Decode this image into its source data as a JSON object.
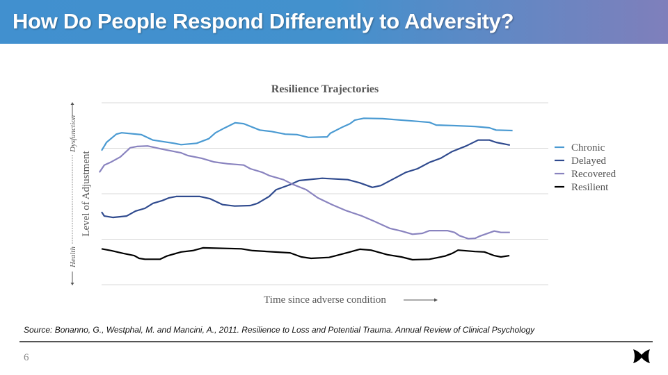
{
  "header": {
    "title": "How Do People Respond Differently to Adversity?"
  },
  "footer": {
    "source": "Source: Bonanno, G., Westphal, M. and Mancini, A., 2011. Resilience to Loss and Potential Trauma. Annual Review of Clinical Psychology",
    "page_number": "6",
    "logo_icon": "butterfly-x-logo-icon"
  },
  "chart_data": {
    "type": "line",
    "title": "Resilience Trajectories",
    "xlabel": "Time since adverse condition",
    "ylabel": "Level of Adjustment",
    "ylabel_low": "Health",
    "ylabel_high": "Dysfunction",
    "xlim": [
      0,
      100
    ],
    "ylim": [
      0,
      4
    ],
    "grid": true,
    "y_tick_labels": false,
    "legend": "right",
    "series": [
      {
        "name": "Chronic",
        "color": "#4a9ad2",
        "x": [
          0,
          1.1,
          3.3,
          4.5,
          8.9,
          11.5,
          16.2,
          17.8,
          21.3,
          24,
          25.5,
          27.4,
          29.9,
          31.8,
          35.4,
          38,
          41.1,
          43.8,
          46.3,
          50.5,
          51.2,
          54,
          55.6,
          56.7,
          58.7,
          62.9,
          69.6,
          73.4,
          74.9,
          78.5,
          83.6,
          86.8,
          88.3,
          92
        ],
        "y": [
          2.95,
          3.13,
          3.31,
          3.34,
          3.3,
          3.18,
          3.11,
          3.08,
          3.11,
          3.21,
          3.34,
          3.44,
          3.56,
          3.54,
          3.4,
          3.37,
          3.31,
          3.3,
          3.24,
          3.25,
          3.33,
          3.47,
          3.54,
          3.62,
          3.66,
          3.65,
          3.6,
          3.57,
          3.51,
          3.5,
          3.48,
          3.45,
          3.4,
          3.39
        ]
      },
      {
        "name": "Delayed",
        "color": "#2f4a8e",
        "x": [
          0,
          0.6,
          2.5,
          5.6,
          7.6,
          9.7,
          11.5,
          13.6,
          15.1,
          16.7,
          22,
          24.3,
          27.1,
          29.8,
          33.3,
          34.9,
          37.5,
          39.1,
          42.2,
          44.2,
          49.4,
          55.1,
          57.8,
          60.6,
          62.5,
          65.6,
          68.1,
          70.7,
          73.4,
          75.9,
          78.5,
          81.6,
          84.3,
          86.8,
          88.3,
          91.4
        ],
        "y": [
          1.6,
          1.51,
          1.48,
          1.51,
          1.62,
          1.68,
          1.79,
          1.85,
          1.91,
          1.94,
          1.94,
          1.89,
          1.76,
          1.73,
          1.74,
          1.79,
          1.94,
          2.09,
          2.2,
          2.29,
          2.34,
          2.31,
          2.24,
          2.14,
          2.18,
          2.34,
          2.47,
          2.55,
          2.69,
          2.78,
          2.93,
          3.05,
          3.18,
          3.18,
          3.13,
          3.07
        ]
      },
      {
        "name": "Recovered",
        "color": "#8983bf",
        "x": [
          -0.5,
          0.6,
          2.2,
          4.2,
          6.4,
          7.9,
          10.3,
          13.6,
          16.2,
          17.8,
          19.3,
          22.4,
          25.1,
          28.2,
          31.8,
          33.3,
          36,
          37.5,
          40.7,
          42.7,
          45.8,
          48.4,
          51.6,
          54.7,
          58.3,
          60.9,
          64.5,
          67.1,
          69.6,
          71.8,
          73.4,
          77.4,
          79,
          80.1,
          82.1,
          83.6,
          84.7,
          87.9,
          89.4,
          91.4
        ],
        "y": [
          2.47,
          2.63,
          2.7,
          2.81,
          3.01,
          3.04,
          3.05,
          2.98,
          2.93,
          2.9,
          2.84,
          2.78,
          2.7,
          2.66,
          2.63,
          2.55,
          2.47,
          2.4,
          2.31,
          2.21,
          2.09,
          1.91,
          1.76,
          1.63,
          1.51,
          1.4,
          1.24,
          1.18,
          1.11,
          1.13,
          1.19,
          1.19,
          1.15,
          1.08,
          1.01,
          1.02,
          1.07,
          1.18,
          1.15,
          1.15
        ]
      },
      {
        "name": "Resilient",
        "color": "#000000",
        "x": [
          0,
          2.2,
          4.8,
          7.3,
          8.4,
          9.7,
          13.1,
          14.6,
          17.8,
          20.4,
          22.7,
          31.3,
          33.8,
          42.2,
          44.7,
          46.9,
          50.9,
          52.5,
          55.6,
          57.8,
          60.3,
          64,
          67.1,
          69.6,
          73.4,
          76.9,
          78.5,
          79.8,
          83.6,
          85.7,
          87.9,
          89.4,
          91.3
        ],
        "y": [
          0.79,
          0.75,
          0.69,
          0.64,
          0.58,
          0.56,
          0.56,
          0.63,
          0.72,
          0.75,
          0.81,
          0.79,
          0.75,
          0.7,
          0.61,
          0.58,
          0.6,
          0.64,
          0.72,
          0.78,
          0.76,
          0.66,
          0.61,
          0.55,
          0.56,
          0.63,
          0.69,
          0.76,
          0.73,
          0.72,
          0.64,
          0.61,
          0.64
        ]
      }
    ]
  }
}
